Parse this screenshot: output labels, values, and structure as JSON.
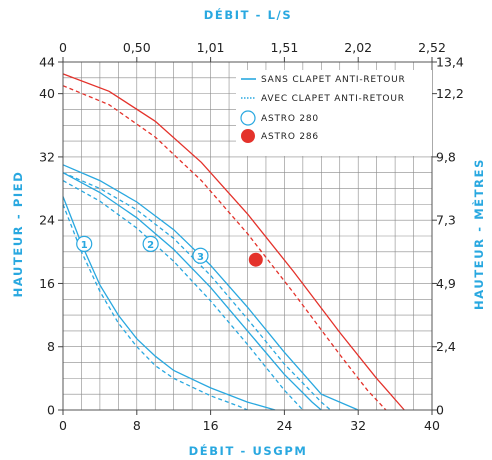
{
  "chart_data": {
    "type": "line",
    "titles": {
      "top_x": "DÉBIT - L/S",
      "bottom_x": "DÉBIT - USGPM",
      "left_y": "HAUTEUR - PIED",
      "right_y": "HAUTEUR - MÈTRES"
    },
    "x_bottom": {
      "ticks": [
        "0",
        "8",
        "16",
        "24",
        "32",
        "40"
      ],
      "range": [
        0,
        40
      ]
    },
    "x_top": {
      "ticks": [
        "0",
        "0,50",
        "1,01",
        "1,51",
        "2,02",
        "2,52"
      ]
    },
    "y_left": {
      "ticks": [
        "0",
        "8",
        "16",
        "24",
        "32",
        "40",
        "44"
      ],
      "range": [
        0,
        44
      ]
    },
    "y_right": {
      "ticks": [
        "0",
        "2,4",
        "4,9",
        "7,3",
        "9,8",
        "12,2",
        "13,4"
      ]
    },
    "grid": true,
    "legend": {
      "position": "top-right",
      "items": [
        {
          "label": "SANS CLAPET ANTI-RETOUR",
          "symbol": "solid-line"
        },
        {
          "label": "AVEC CLAPET ANTI-RETOUR",
          "symbol": "dotted-line"
        },
        {
          "label": "ASTRO 280",
          "symbol": "open-circle"
        },
        {
          "label": "ASTRO 286",
          "symbol": "filled-circle"
        }
      ]
    },
    "colors": {
      "astro280": "#29a8e0",
      "astro286": "#e4322b",
      "grid": "#8a8a8a",
      "axis_title": "#29a8e0"
    },
    "series": [
      {
        "model": "ASTRO 286",
        "style": "solid",
        "points": [
          [
            0,
            42.5
          ],
          [
            5,
            40.3
          ],
          [
            10,
            36.5
          ],
          [
            15,
            31.3
          ],
          [
            20,
            24.8
          ],
          [
            25,
            17.5
          ],
          [
            30,
            9.8
          ],
          [
            34,
            4
          ],
          [
            37,
            0
          ]
        ]
      },
      {
        "model": "ASTRO 286",
        "style": "dashed",
        "points": [
          [
            0,
            41
          ],
          [
            5,
            38.6
          ],
          [
            10,
            34.5
          ],
          [
            15,
            29
          ],
          [
            20,
            22.3
          ],
          [
            25,
            14.8
          ],
          [
            30,
            7
          ],
          [
            33,
            2.5
          ],
          [
            35,
            0
          ]
        ]
      },
      {
        "model": "ASTRO 280",
        "speed": "3",
        "style": "solid",
        "points": [
          [
            0,
            31
          ],
          [
            4,
            29
          ],
          [
            8,
            26.3
          ],
          [
            12,
            22.8
          ],
          [
            16,
            18.3
          ],
          [
            20,
            13
          ],
          [
            24,
            7.3
          ],
          [
            28,
            2
          ],
          [
            32,
            0
          ]
        ]
      },
      {
        "model": "ASTRO 280",
        "speed": "3",
        "style": "dashed",
        "points": [
          [
            0,
            30
          ],
          [
            4,
            28
          ],
          [
            8,
            25.3
          ],
          [
            12,
            21.7
          ],
          [
            16,
            17
          ],
          [
            20,
            11.5
          ],
          [
            24,
            5.8
          ],
          [
            28,
            1
          ],
          [
            29,
            0
          ]
        ]
      },
      {
        "model": "ASTRO 280",
        "speed": "2",
        "style": "solid",
        "points": [
          [
            0,
            30
          ],
          [
            4,
            27.5
          ],
          [
            8,
            24.3
          ],
          [
            12,
            20.3
          ],
          [
            16,
            15.5
          ],
          [
            20,
            10
          ],
          [
            24,
            4.5
          ],
          [
            27,
            1
          ],
          [
            28,
            0
          ]
        ]
      },
      {
        "model": "ASTRO 280",
        "speed": "2",
        "style": "dashed",
        "points": [
          [
            0,
            29
          ],
          [
            4,
            26.4
          ],
          [
            8,
            23
          ],
          [
            12,
            18.8
          ],
          [
            16,
            13.8
          ],
          [
            20,
            8.3
          ],
          [
            24,
            2.5
          ],
          [
            26,
            0
          ]
        ]
      },
      {
        "model": "ASTRO 280",
        "speed": "1",
        "style": "solid",
        "points": [
          [
            0,
            27
          ],
          [
            2,
            21
          ],
          [
            4,
            15.8
          ],
          [
            6,
            12
          ],
          [
            8,
            9
          ],
          [
            10,
            6.8
          ],
          [
            12,
            5
          ],
          [
            16,
            2.8
          ],
          [
            20,
            1
          ],
          [
            23,
            0
          ]
        ]
      },
      {
        "model": "ASTRO 280",
        "speed": "1",
        "style": "dashed",
        "points": [
          [
            0,
            26
          ],
          [
            2,
            20
          ],
          [
            4,
            15
          ],
          [
            6,
            11
          ],
          [
            8,
            8
          ],
          [
            10,
            5.6
          ],
          [
            12,
            4
          ],
          [
            16,
            1.8
          ],
          [
            19,
            0.5
          ],
          [
            20,
            0
          ]
        ]
      }
    ],
    "speed_labels": [
      {
        "text": "1",
        "x": 2.3,
        "y": 21
      },
      {
        "text": "2",
        "x": 9.5,
        "y": 21
      },
      {
        "text": "3",
        "x": 14.9,
        "y": 19.5
      }
    ],
    "markers": [
      {
        "label": "ASTRO 286",
        "x": 20.9,
        "y": 19,
        "style": "filled"
      }
    ]
  }
}
